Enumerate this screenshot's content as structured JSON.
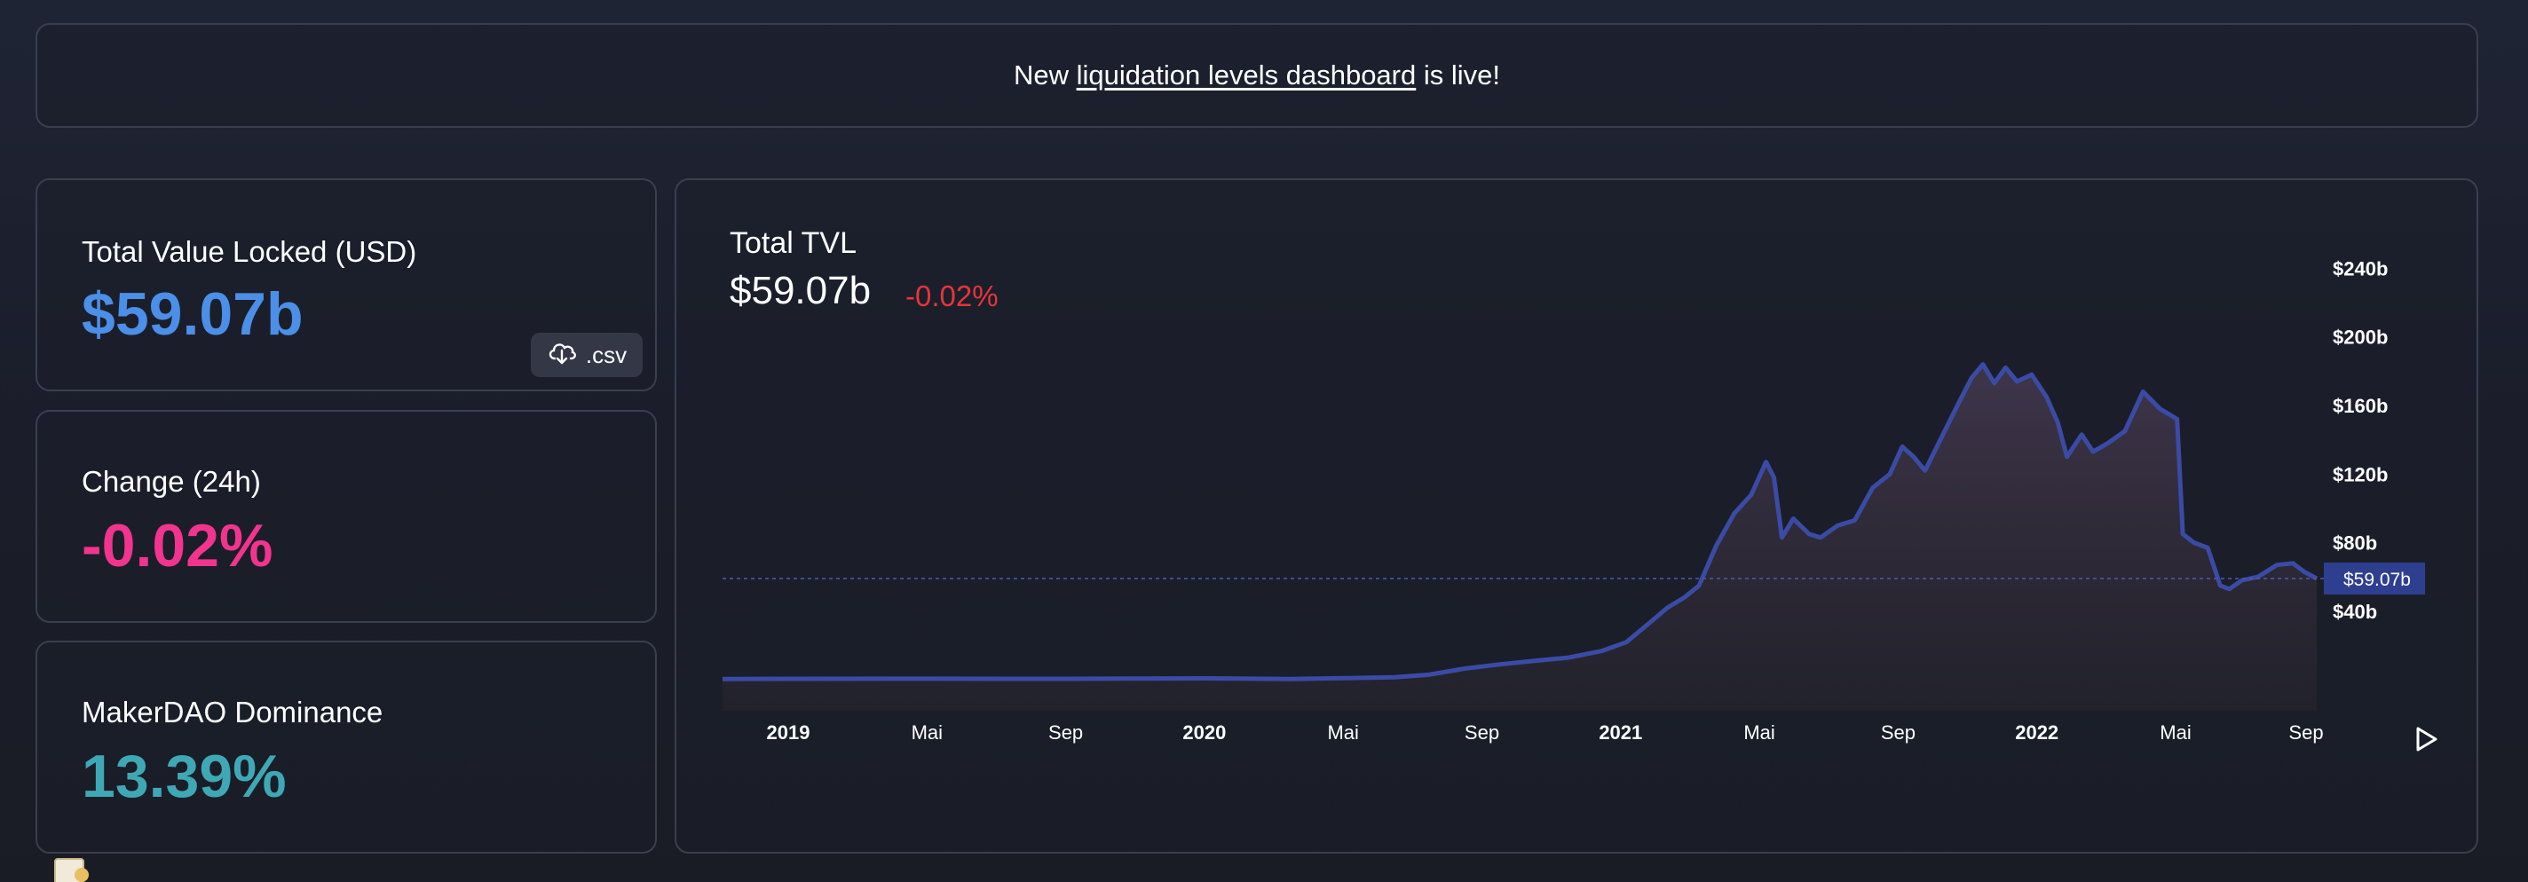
{
  "banner": {
    "prefix": "New ",
    "link_text": "liquidation levels dashboard",
    "suffix": " is live!"
  },
  "stats": {
    "tvl": {
      "label": "Total Value Locked (USD)",
      "value": "$59.07b"
    },
    "change": {
      "label": "Change (24h)",
      "value": "-0.02%"
    },
    "dominance": {
      "label": "MakerDAO Dominance",
      "value": "13.39%"
    }
  },
  "csv_button": {
    "label": ".csv",
    "icon": "cloud-download-icon"
  },
  "chart": {
    "title": "Total TVL",
    "value": "$59.07b",
    "change": "-0.02%",
    "current_label": "$59.07b",
    "play_icon": "play-icon"
  },
  "colors": {
    "tvl_value": "#4b8fe8",
    "change_value": "#f2348e",
    "dominance_value": "#3fa8b5",
    "chart_change": "#e6353c",
    "line": "#3b4ba5",
    "price_tag": "#2f3f90"
  },
  "chart_data": {
    "type": "area",
    "x_tick_labels": [
      "2019",
      "Mai",
      "Sep",
      "2020",
      "Mai",
      "Sep",
      "2021",
      "Mai",
      "Sep",
      "2022",
      "Mai",
      "Sep"
    ],
    "year_ticks": [
      "2019",
      "2020",
      "2021",
      "2022"
    ],
    "y_tick_labels": [
      "$240b",
      "$200b",
      "$160b",
      "$120b",
      "$80b",
      "$40b"
    ],
    "y_ticks_b": [
      240,
      200,
      160,
      120,
      80,
      40
    ],
    "ylim_b": [
      -18,
      250
    ],
    "ylabel": "",
    "xlabel": "",
    "current_value_b": 59.07,
    "series": [
      {
        "values": [
          {
            "x": "2018-11-01",
            "y": 0.5
          },
          {
            "x": "2019-01-01",
            "y": 0.6
          },
          {
            "x": "2019-05-01",
            "y": 0.7
          },
          {
            "x": "2019-09-01",
            "y": 0.6
          },
          {
            "x": "2020-01-01",
            "y": 0.9
          },
          {
            "x": "2020-03-15",
            "y": 0.5
          },
          {
            "x": "2020-05-01",
            "y": 1.0
          },
          {
            "x": "2020-06-15",
            "y": 1.5
          },
          {
            "x": "2020-07-15",
            "y": 3.0
          },
          {
            "x": "2020-08-15",
            "y": 6.5
          },
          {
            "x": "2020-09-15",
            "y": 9.0
          },
          {
            "x": "2020-10-15",
            "y": 11.0
          },
          {
            "x": "2020-11-15",
            "y": 13.0
          },
          {
            "x": "2020-12-15",
            "y": 17.0
          },
          {
            "x": "2021-01-05",
            "y": 22.0
          },
          {
            "x": "2021-01-25",
            "y": 33.0
          },
          {
            "x": "2021-02-10",
            "y": 42.0
          },
          {
            "x": "2021-02-25",
            "y": 48.0
          },
          {
            "x": "2021-03-10",
            "y": 55.0
          },
          {
            "x": "2021-03-25",
            "y": 78.0
          },
          {
            "x": "2021-04-10",
            "y": 97.0
          },
          {
            "x": "2021-04-25",
            "y": 108.0
          },
          {
            "x": "2021-05-08",
            "y": 127.0
          },
          {
            "x": "2021-05-15",
            "y": 118.0
          },
          {
            "x": "2021-05-22",
            "y": 83.0
          },
          {
            "x": "2021-06-01",
            "y": 94.0
          },
          {
            "x": "2021-06-15",
            "y": 85.0
          },
          {
            "x": "2021-06-25",
            "y": 83.0
          },
          {
            "x": "2021-07-10",
            "y": 90.0
          },
          {
            "x": "2021-07-25",
            "y": 93.0
          },
          {
            "x": "2021-08-10",
            "y": 112.0
          },
          {
            "x": "2021-08-25",
            "y": 120.0
          },
          {
            "x": "2021-09-05",
            "y": 136.0
          },
          {
            "x": "2021-09-15",
            "y": 130.0
          },
          {
            "x": "2021-09-25",
            "y": 122.0
          },
          {
            "x": "2021-10-10",
            "y": 142.0
          },
          {
            "x": "2021-10-25",
            "y": 162.0
          },
          {
            "x": "2021-11-05",
            "y": 176.0
          },
          {
            "x": "2021-11-15",
            "y": 184.0
          },
          {
            "x": "2021-11-25",
            "y": 173.0
          },
          {
            "x": "2021-12-05",
            "y": 182.0
          },
          {
            "x": "2021-12-15",
            "y": 174.0
          },
          {
            "x": "2021-12-28",
            "y": 178.0
          },
          {
            "x": "2022-01-10",
            "y": 165.0
          },
          {
            "x": "2022-01-20",
            "y": 150.0
          },
          {
            "x": "2022-01-28",
            "y": 130.0
          },
          {
            "x": "2022-02-10",
            "y": 143.0
          },
          {
            "x": "2022-02-20",
            "y": 133.0
          },
          {
            "x": "2022-03-05",
            "y": 138.0
          },
          {
            "x": "2022-03-20",
            "y": 145.0
          },
          {
            "x": "2022-04-05",
            "y": 168.0
          },
          {
            "x": "2022-04-20",
            "y": 158.0
          },
          {
            "x": "2022-05-05",
            "y": 152.0
          },
          {
            "x": "2022-05-10",
            "y": 85.0
          },
          {
            "x": "2022-05-20",
            "y": 80.0
          },
          {
            "x": "2022-06-01",
            "y": 77.0
          },
          {
            "x": "2022-06-12",
            "y": 55.0
          },
          {
            "x": "2022-06-20",
            "y": 53.0
          },
          {
            "x": "2022-07-01",
            "y": 58.0
          },
          {
            "x": "2022-07-15",
            "y": 60.0
          },
          {
            "x": "2022-08-01",
            "y": 67.0
          },
          {
            "x": "2022-08-15",
            "y": 68.0
          },
          {
            "x": "2022-08-25",
            "y": 63.0
          },
          {
            "x": "2022-09-05",
            "y": 59.07
          }
        ]
      }
    ]
  }
}
